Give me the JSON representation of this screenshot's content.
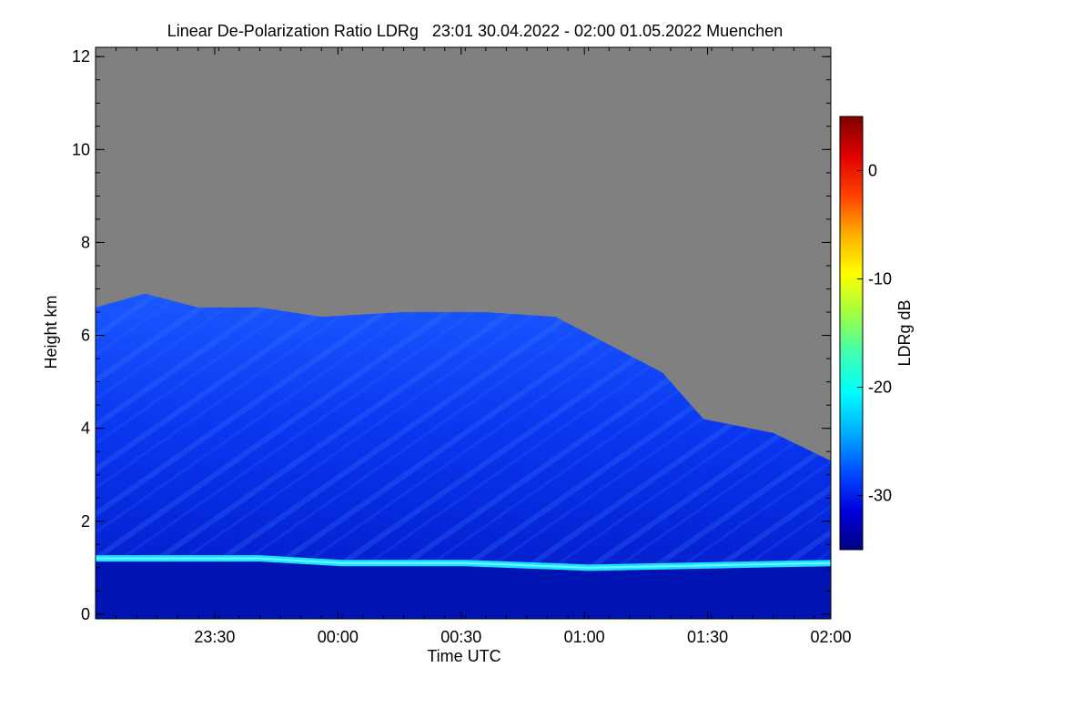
{
  "chart_data": {
    "type": "heatmap",
    "title": "Linear De-Polarization Ratio LDRg   23:01 30.04.2022 - 02:00 01.05.2022 Muenchen",
    "xlabel": "Time UTC",
    "ylabel": "Height km",
    "x_range_minutes_since_2301": [
      0,
      179
    ],
    "x_ticks": [
      {
        "label": "23:30",
        "minutes": 29
      },
      {
        "label": "00:00",
        "minutes": 59
      },
      {
        "label": "00:30",
        "minutes": 89
      },
      {
        "label": "01:00",
        "minutes": 119
      },
      {
        "label": "01:30",
        "minutes": 149
      },
      {
        "label": "02:00",
        "minutes": 179
      }
    ],
    "ylim": [
      -0.1,
      12.2
    ],
    "y_ticks": [
      {
        "label": "0",
        "value": 0
      },
      {
        "label": "2",
        "value": 2
      },
      {
        "label": "4",
        "value": 4
      },
      {
        "label": "6",
        "value": 6
      },
      {
        "label": "8",
        "value": 8
      },
      {
        "label": "10",
        "value": 10
      },
      {
        "label": "12",
        "value": 12
      }
    ],
    "colorbar": {
      "label": "LDRg dB",
      "range": [
        -35,
        5
      ],
      "ticks": [
        {
          "label": "0",
          "value": 0
        },
        {
          "label": "-10",
          "value": -10
        },
        {
          "label": "-20",
          "value": -20
        },
        {
          "label": "-30",
          "value": -30
        }
      ],
      "colors": [
        "#000080",
        "#0000e0",
        "#0050ff",
        "#00b0ff",
        "#00ffff",
        "#40ffb0",
        "#a0ff40",
        "#ffff00",
        "#ffb000",
        "#ff4000",
        "#e00000",
        "#800000"
      ]
    },
    "no_data_color": "#808080",
    "features": {
      "cloud_top_height_km": [
        {
          "minutes": 0,
          "value": 6.6
        },
        {
          "minutes": 12,
          "value": 6.9
        },
        {
          "minutes": 25,
          "value": 6.6
        },
        {
          "minutes": 40,
          "value": 6.6
        },
        {
          "minutes": 55,
          "value": 6.4
        },
        {
          "minutes": 75,
          "value": 6.5
        },
        {
          "minutes": 95,
          "value": 6.5
        },
        {
          "minutes": 112,
          "value": 6.4
        },
        {
          "minutes": 125,
          "value": 5.8
        },
        {
          "minutes": 138,
          "value": 5.2
        },
        {
          "minutes": 148,
          "value": 4.2
        },
        {
          "minutes": 165,
          "value": 3.9
        },
        {
          "minutes": 179,
          "value": 3.3
        }
      ],
      "boundary_layer_height_km": [
        {
          "minutes": 0,
          "value": 1.2
        },
        {
          "minutes": 40,
          "value": 1.2
        },
        {
          "minutes": 60,
          "value": 1.1
        },
        {
          "minutes": 90,
          "value": 1.1
        },
        {
          "minutes": 120,
          "value": 1.0
        },
        {
          "minutes": 150,
          "value": 1.05
        },
        {
          "minutes": 179,
          "value": 1.1
        }
      ],
      "boundary_layer_ldr_db": -22,
      "cirrus_ldr_db": -29,
      "lower_layer_ldr_db": -33
    }
  }
}
